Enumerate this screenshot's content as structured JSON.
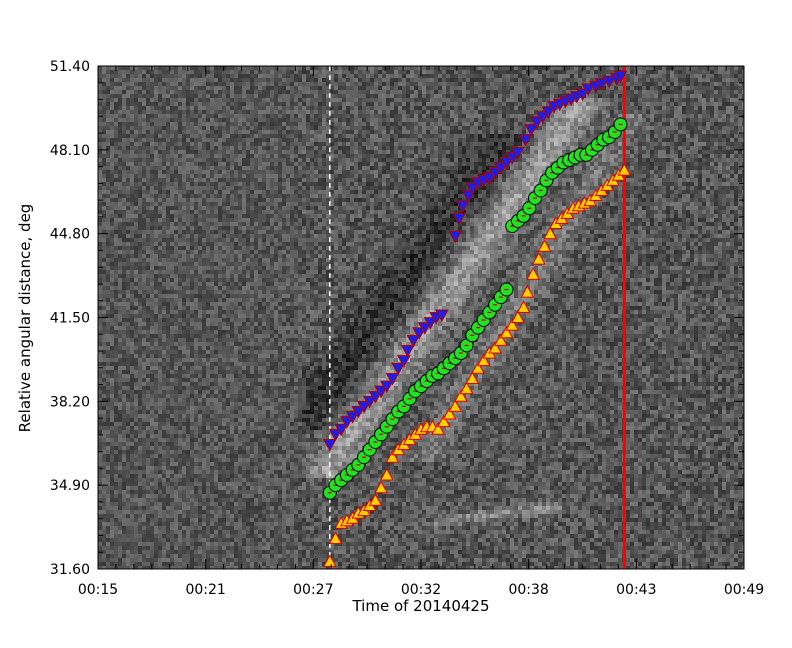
{
  "chart_data": {
    "type": "scatter",
    "background": "time-distance difference image (grayscale)",
    "xlabel": "Time of 20140425",
    "ylabel": "Relative angular distance, deg",
    "x_unit": "minutes after 00:00 UT",
    "xlim": [
      15,
      49
    ],
    "ylim": [
      31.6,
      51.4
    ],
    "xtick_labels": [
      "00:15",
      "00:21",
      "00:27",
      "00:32",
      "00:38",
      "00:43",
      "00:49"
    ],
    "ytick_labels": [
      "31.60",
      "34.90",
      "38.20",
      "41.50",
      "44.80",
      "48.10",
      "51.40"
    ],
    "vlines": [
      {
        "x": 27.2,
        "color": "#ffffff",
        "style": "dashed"
      },
      {
        "x": 42.7,
        "color": "#ff0000",
        "style": "solid"
      }
    ],
    "series": [
      {
        "marker": "triangle-down",
        "color": "#1e1ee6",
        "edge": "#b00000",
        "points": [
          [
            27.2,
            36.5
          ],
          [
            27.5,
            36.9
          ],
          [
            27.8,
            37.1
          ],
          [
            28.1,
            37.4
          ],
          [
            28.4,
            37.6
          ],
          [
            28.7,
            37.8
          ],
          [
            29.0,
            38.0
          ],
          [
            29.3,
            38.2
          ],
          [
            29.6,
            38.4
          ],
          [
            29.9,
            38.6
          ],
          [
            30.2,
            38.8
          ],
          [
            30.5,
            39.1
          ],
          [
            30.8,
            39.5
          ],
          [
            31.1,
            39.8
          ],
          [
            31.3,
            40.2
          ],
          [
            31.6,
            40.6
          ],
          [
            31.9,
            40.9
          ],
          [
            32.2,
            41.1
          ],
          [
            32.5,
            41.3
          ],
          [
            32.8,
            41.5
          ],
          [
            33.1,
            41.6
          ],
          [
            33.8,
            44.7
          ],
          [
            34.0,
            45.4
          ],
          [
            34.2,
            45.9
          ],
          [
            34.5,
            46.3
          ],
          [
            34.7,
            46.6
          ],
          [
            35.0,
            46.8
          ],
          [
            35.3,
            46.9
          ],
          [
            35.6,
            47.0
          ],
          [
            35.9,
            47.2
          ],
          [
            36.2,
            47.4
          ],
          [
            36.5,
            47.6
          ],
          [
            36.8,
            47.8
          ],
          [
            37.1,
            48.0
          ],
          [
            37.5,
            48.5
          ],
          [
            37.8,
            48.9
          ],
          [
            38.1,
            49.2
          ],
          [
            38.4,
            49.4
          ],
          [
            38.7,
            49.6
          ],
          [
            39.0,
            49.8
          ],
          [
            39.3,
            49.9
          ],
          [
            39.6,
            50.0
          ],
          [
            39.9,
            50.1
          ],
          [
            40.2,
            50.2
          ],
          [
            40.5,
            50.3
          ],
          [
            40.8,
            50.5
          ],
          [
            41.2,
            50.6
          ],
          [
            41.5,
            50.7
          ],
          [
            41.9,
            50.8
          ],
          [
            42.3,
            50.9
          ],
          [
            42.5,
            51.0
          ]
        ]
      },
      {
        "marker": "circle",
        "color": "#22e022",
        "edge": "#000000",
        "points": [
          [
            27.2,
            34.6
          ],
          [
            27.5,
            34.9
          ],
          [
            27.8,
            35.1
          ],
          [
            28.1,
            35.3
          ],
          [
            28.4,
            35.5
          ],
          [
            28.7,
            35.7
          ],
          [
            29.0,
            36.0
          ],
          [
            29.3,
            36.3
          ],
          [
            29.6,
            36.6
          ],
          [
            29.9,
            36.9
          ],
          [
            30.2,
            37.2
          ],
          [
            30.5,
            37.5
          ],
          [
            30.8,
            37.8
          ],
          [
            31.1,
            38.0
          ],
          [
            31.4,
            38.3
          ],
          [
            31.7,
            38.6
          ],
          [
            32.0,
            38.8
          ],
          [
            32.3,
            39.0
          ],
          [
            32.6,
            39.2
          ],
          [
            32.9,
            39.3
          ],
          [
            33.2,
            39.5
          ],
          [
            33.5,
            39.7
          ],
          [
            33.8,
            39.9
          ],
          [
            34.1,
            40.1
          ],
          [
            34.4,
            40.4
          ],
          [
            34.7,
            40.8
          ],
          [
            35.0,
            41.1
          ],
          [
            35.3,
            41.4
          ],
          [
            35.6,
            41.7
          ],
          [
            35.9,
            42.0
          ],
          [
            36.2,
            42.3
          ],
          [
            36.5,
            42.6
          ],
          [
            36.8,
            45.1
          ],
          [
            37.1,
            45.3
          ],
          [
            37.4,
            45.5
          ],
          [
            37.7,
            45.8
          ],
          [
            38.0,
            46.2
          ],
          [
            38.3,
            46.5
          ],
          [
            38.6,
            46.9
          ],
          [
            38.9,
            47.2
          ],
          [
            39.2,
            47.4
          ],
          [
            39.5,
            47.6
          ],
          [
            39.8,
            47.7
          ],
          [
            40.1,
            47.8
          ],
          [
            40.4,
            47.9
          ],
          [
            40.7,
            47.9
          ],
          [
            41.0,
            48.1
          ],
          [
            41.3,
            48.3
          ],
          [
            41.6,
            48.5
          ],
          [
            41.9,
            48.6
          ],
          [
            42.2,
            48.8
          ],
          [
            42.5,
            49.1
          ]
        ]
      },
      {
        "marker": "triangle-up",
        "color": "#ffd000",
        "edge": "#e00000",
        "points": [
          [
            27.2,
            31.9
          ],
          [
            27.5,
            32.8
          ],
          [
            27.8,
            33.4
          ],
          [
            28.1,
            33.5
          ],
          [
            28.4,
            33.6
          ],
          [
            28.7,
            33.8
          ],
          [
            29.0,
            33.9
          ],
          [
            29.3,
            34.1
          ],
          [
            29.6,
            34.3
          ],
          [
            29.9,
            34.8
          ],
          [
            30.2,
            35.3
          ],
          [
            30.5,
            36.0
          ],
          [
            30.8,
            36.3
          ],
          [
            31.1,
            36.5
          ],
          [
            31.4,
            36.7
          ],
          [
            31.7,
            36.9
          ],
          [
            32.0,
            37.1
          ],
          [
            32.3,
            37.2
          ],
          [
            32.6,
            37.2
          ],
          [
            32.9,
            37.1
          ],
          [
            33.2,
            37.4
          ],
          [
            33.5,
            37.7
          ],
          [
            33.8,
            38.0
          ],
          [
            34.1,
            38.4
          ],
          [
            34.4,
            38.7
          ],
          [
            34.7,
            39.1
          ],
          [
            35.0,
            39.5
          ],
          [
            35.3,
            39.8
          ],
          [
            35.6,
            40.1
          ],
          [
            35.9,
            40.3
          ],
          [
            36.2,
            40.6
          ],
          [
            36.5,
            40.9
          ],
          [
            36.8,
            41.2
          ],
          [
            37.1,
            41.5
          ],
          [
            37.4,
            41.9
          ],
          [
            37.6,
            42.5
          ],
          [
            37.9,
            43.2
          ],
          [
            38.2,
            43.8
          ],
          [
            38.5,
            44.3
          ],
          [
            38.8,
            44.8
          ],
          [
            39.1,
            45.2
          ],
          [
            39.4,
            45.4
          ],
          [
            39.7,
            45.6
          ],
          [
            40.0,
            45.8
          ],
          [
            40.3,
            45.9
          ],
          [
            40.6,
            46.0
          ],
          [
            40.9,
            46.1
          ],
          [
            41.2,
            46.3
          ],
          [
            41.5,
            46.5
          ],
          [
            41.8,
            46.7
          ],
          [
            42.1,
            46.9
          ],
          [
            42.4,
            47.1
          ],
          [
            42.7,
            47.3
          ]
        ]
      }
    ]
  }
}
